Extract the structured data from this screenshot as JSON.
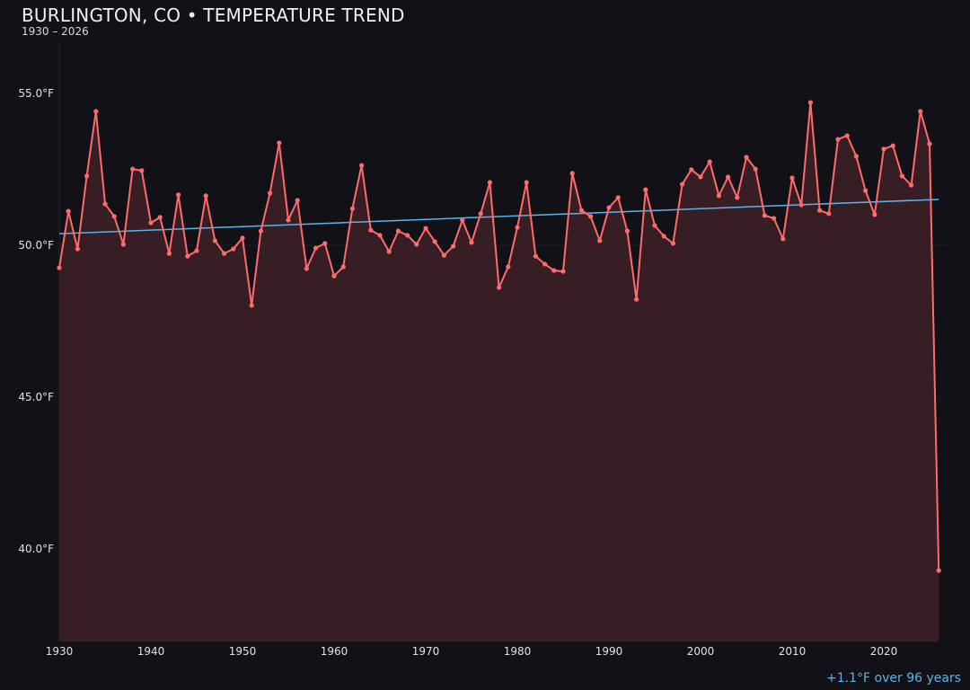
{
  "chart_data": {
    "type": "line",
    "title": "BURLINGTON, CO • TEMPERATURE TREND",
    "subtitle": "1930 – 2026",
    "xlabel": "",
    "ylabel": "",
    "xlim": [
      1930,
      2027
    ],
    "ylim": [
      37,
      57
    ],
    "grid": true,
    "y_ticks": [
      40,
      45,
      50,
      55
    ],
    "y_tick_labels": [
      "40.0°F",
      "45.0°F",
      "50.0°F",
      "55.0°F"
    ],
    "x_ticks": [
      1930,
      1940,
      1950,
      1960,
      1970,
      1980,
      1990,
      2000,
      2010,
      2020
    ],
    "x_tick_labels": [
      "1930",
      "1940",
      "1950",
      "1960",
      "1970",
      "1980",
      "1990",
      "2000",
      "2010",
      "2020"
    ],
    "series": [
      {
        "x": [
          1930,
          1931,
          1932,
          1933,
          1934,
          1935,
          1936,
          1937,
          1938,
          1939,
          1940,
          1941,
          1942,
          1943,
          1944,
          1945,
          1946,
          1947,
          1948,
          1949,
          1950,
          1951,
          1952,
          1953,
          1954,
          1955,
          1956,
          1957,
          1958,
          1959,
          1960,
          1961,
          1962,
          1963,
          1964,
          1965,
          1966,
          1967,
          1968,
          1969,
          1970,
          1971,
          1972,
          1973,
          1974,
          1975,
          1976,
          1977,
          1978,
          1979,
          1980,
          1981,
          1982,
          1983,
          1984,
          1985,
          1986,
          1987,
          1988,
          1989,
          1990,
          1991,
          1992,
          1993,
          1994,
          1995,
          1996,
          1997,
          1998,
          1999,
          2000,
          2001,
          2002,
          2003,
          2004,
          2005,
          2006,
          2007,
          2008,
          2009,
          2010,
          2011,
          2012,
          2013,
          2014,
          2015,
          2016,
          2017,
          2018,
          2019,
          2020,
          2021,
          2022,
          2023,
          2024,
          2025,
          2026
        ],
        "values": [
          49.26,
          51.12,
          49.88,
          52.28,
          54.41,
          51.36,
          50.95,
          50.03,
          52.51,
          52.46,
          50.74,
          50.92,
          49.73,
          51.66,
          49.64,
          49.82,
          51.63,
          50.15,
          49.73,
          49.88,
          50.24,
          48.02,
          50.47,
          51.72,
          53.37,
          50.83,
          51.48,
          49.23,
          49.91,
          50.06,
          48.99,
          49.29,
          51.21,
          52.63,
          50.5,
          50.33,
          49.79,
          50.47,
          50.33,
          50.03,
          50.56,
          50.12,
          49.67,
          49.97,
          50.83,
          50.09,
          51.04,
          52.07,
          48.61,
          49.29,
          50.59,
          52.07,
          49.64,
          49.38,
          49.17,
          49.14,
          52.37,
          51.15,
          50.95,
          50.15,
          51.24,
          51.57,
          50.47,
          48.22,
          51.83,
          50.65,
          50.3,
          50.06,
          52.01,
          52.49,
          52.25,
          52.75,
          51.63,
          52.25,
          51.57,
          52.9,
          52.51,
          50.98,
          50.89,
          50.21,
          52.22,
          51.33,
          54.7,
          51.15,
          51.04,
          53.49,
          53.61,
          52.93,
          51.8,
          51.01,
          53.17,
          53.28,
          52.28,
          51.98,
          54.41,
          53.34,
          39.29
        ]
      }
    ],
    "trend_line": {
      "x": [
        1930,
        2026
      ],
      "values": [
        50.38,
        51.51
      ]
    },
    "annotation": "+1.1°F over 96 years",
    "colors": {
      "background": "#121117",
      "series": "#ff6b6b",
      "fill": "#3a1f25",
      "trend": "#5ab4e8",
      "grid": "#1f1d24"
    }
  }
}
